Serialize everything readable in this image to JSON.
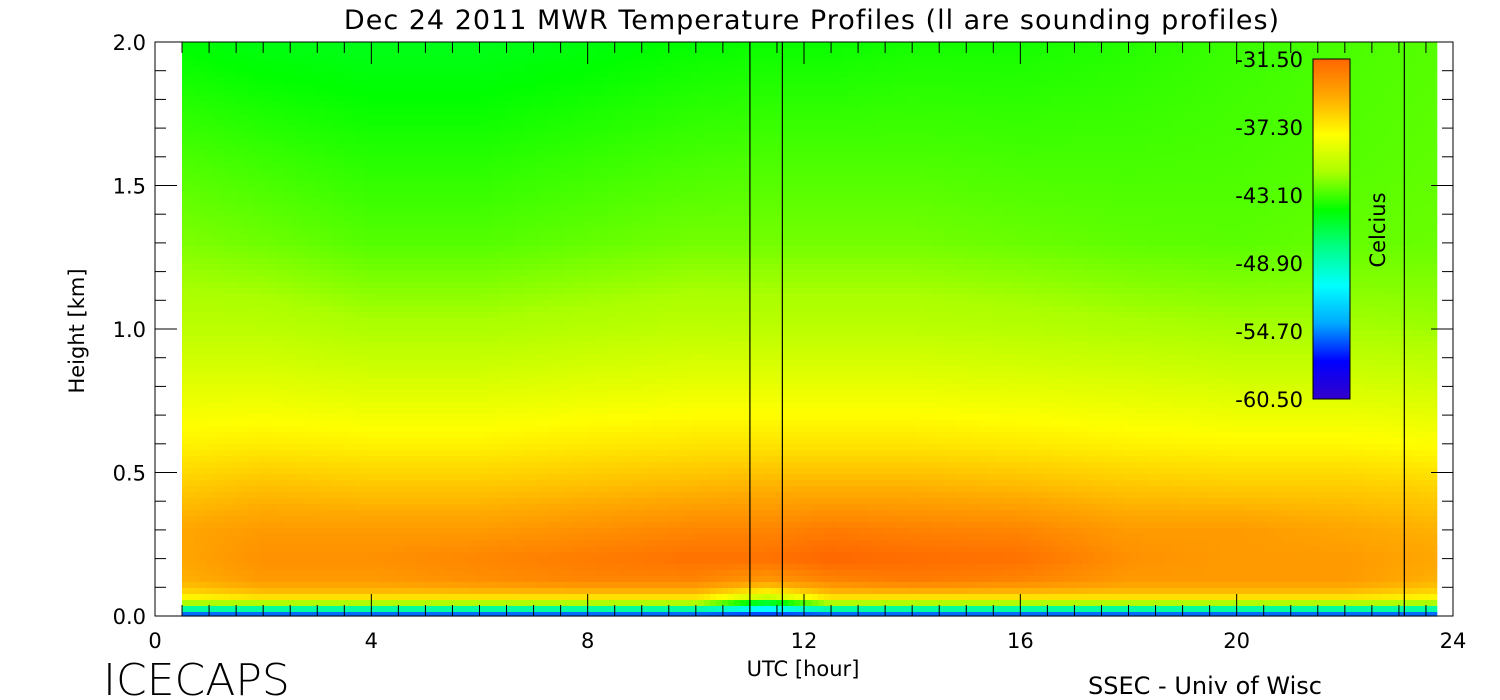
{
  "chart_data": {
    "type": "heatmap",
    "title": "Dec 24 2011 MWR Temperature Profiles (ll are sounding profiles)",
    "xlabel": "UTC [hour]",
    "ylabel": "Height [km]",
    "xlim": [
      0,
      24
    ],
    "ylim": [
      0,
      2.0
    ],
    "x_ticks": [
      "0",
      "4",
      "8",
      "12",
      "16",
      "20",
      "24"
    ],
    "x_tick_values": [
      0,
      4,
      8,
      12,
      16,
      20,
      24
    ],
    "y_ticks": [
      "0.0",
      "0.5",
      "1.0",
      "1.5",
      "2.0"
    ],
    "y_tick_values": [
      0,
      0.5,
      1.0,
      1.5,
      2.0
    ],
    "data_time_range": [
      0.5,
      23.7
    ],
    "sounding_times": [
      11.0,
      11.6,
      23.1
    ],
    "colorbar": {
      "label": "Celcius",
      "ticks": [
        "-31.50",
        "-37.30",
        "-43.10",
        "-48.90",
        "-54.70",
        "-60.50"
      ],
      "tick_values": [
        -31.5,
        -37.3,
        -43.1,
        -48.9,
        -54.7,
        -60.5
      ],
      "min": -60.5,
      "max": -31.5,
      "colors": [
        "#3300cc",
        "#0000ff",
        "#00aaff",
        "#00ffff",
        "#00ff88",
        "#00ff00",
        "#aaff00",
        "#ffff00",
        "#ffaa00",
        "#ff6600"
      ]
    },
    "heights_km": [
      0.0,
      0.02,
      0.04,
      0.07,
      0.12,
      0.2,
      0.3,
      0.45,
      0.6,
      0.8,
      1.0,
      1.3,
      1.6,
      2.0
    ],
    "profile_hours": [
      0.5,
      2,
      4,
      6,
      8,
      10,
      11.3,
      12.5,
      14,
      16,
      18,
      20,
      22,
      23.7
    ],
    "temperature_c": [
      [
        -58,
        -58,
        -58,
        -58,
        -58,
        -58,
        -58,
        -58,
        -58,
        -58,
        -58,
        -58,
        -58,
        -58
      ],
      [
        -50,
        -50,
        -50,
        -50,
        -50,
        -50,
        -52,
        -50,
        -50,
        -50,
        -50,
        -50,
        -50,
        -50
      ],
      [
        -42,
        -42,
        -42,
        -42,
        -42,
        -42,
        -47,
        -42,
        -42,
        -42,
        -42,
        -42,
        -42,
        -42
      ],
      [
        -37,
        -36,
        -36,
        -36,
        -36,
        -36,
        -39,
        -36,
        -36,
        -36,
        -36,
        -36,
        -36,
        -37
      ],
      [
        -35,
        -34,
        -34,
        -33.5,
        -33,
        -33,
        -34,
        -33,
        -32.5,
        -33,
        -34,
        -34,
        -34,
        -35
      ],
      [
        -34.5,
        -33.5,
        -33.5,
        -33,
        -32.5,
        -32,
        -32,
        -31.5,
        -31.8,
        -32,
        -33.5,
        -34,
        -34,
        -34.5
      ],
      [
        -34.5,
        -34,
        -34,
        -34,
        -33.5,
        -33,
        -33,
        -32.5,
        -32.8,
        -33,
        -34,
        -34,
        -34.5,
        -35
      ],
      [
        -36,
        -35.5,
        -35.8,
        -35.8,
        -35.5,
        -35.2,
        -35,
        -35,
        -35,
        -35.3,
        -35.8,
        -36,
        -36,
        -36.3
      ],
      [
        -37.5,
        -37.3,
        -37.5,
        -37.5,
        -37.2,
        -37,
        -37,
        -37,
        -37,
        -37.2,
        -37.5,
        -37.7,
        -37.7,
        -38
      ],
      [
        -39,
        -39,
        -39.3,
        -39.3,
        -39,
        -38.8,
        -38.8,
        -38.8,
        -38.8,
        -39,
        -39.2,
        -39.5,
        -39.5,
        -39.7
      ],
      [
        -40.5,
        -40.5,
        -41,
        -41,
        -40.7,
        -40.4,
        -40.5,
        -40.5,
        -40.5,
        -40.7,
        -41,
        -41.2,
        -41.2,
        -41.4
      ],
      [
        -42,
        -42.3,
        -42.8,
        -42.8,
        -42.5,
        -42.2,
        -42.2,
        -42.2,
        -42.2,
        -42.4,
        -42.6,
        -42.7,
        -42.5,
        -42.4
      ],
      [
        -43,
        -43.3,
        -43.7,
        -43.7,
        -43.4,
        -43.1,
        -43,
        -43,
        -43,
        -43.1,
        -43.1,
        -43,
        -42.8,
        -42.6
      ],
      [
        -44.5,
        -44.8,
        -45,
        -45,
        -44.7,
        -44.3,
        -44.2,
        -44.2,
        -44,
        -44,
        -43.7,
        -43.3,
        -43,
        -42.8
      ]
    ]
  },
  "footer": {
    "brand": "ICECAPS",
    "credit": "SSEC - Univ of Wisc"
  }
}
